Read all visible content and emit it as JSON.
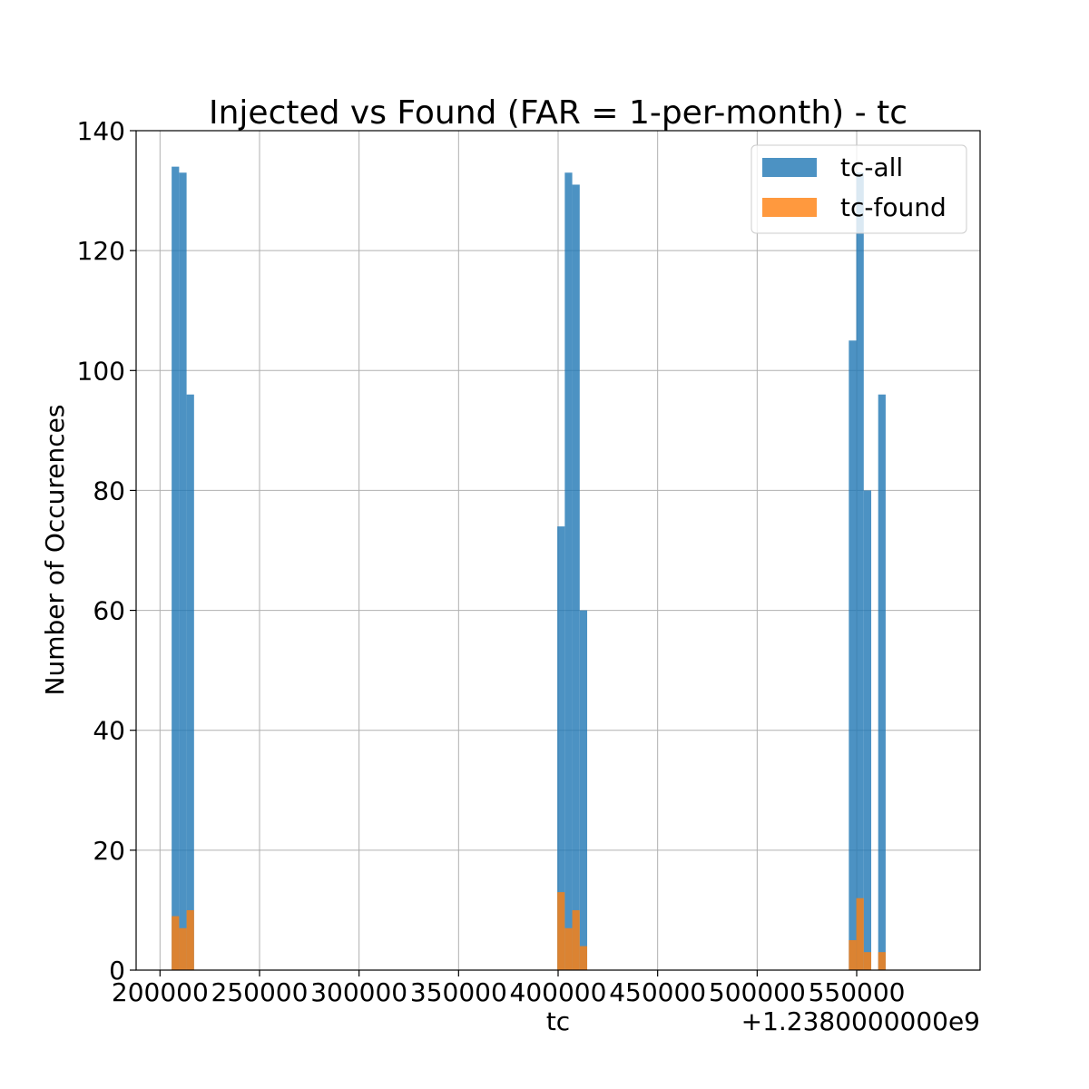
{
  "chart_data": {
    "type": "bar",
    "title": "Injected vs Found (FAR = 1-per-month) - tc",
    "xlabel": "tc",
    "ylabel": "Number of Occurences",
    "x_offset_label": "+1.2380000000e9",
    "xlim": [
      188000,
      612000
    ],
    "ylim": [
      0,
      140
    ],
    "xticks": [
      200000,
      250000,
      300000,
      350000,
      400000,
      450000,
      500000,
      550000
    ],
    "xtick_labels": [
      "200000",
      "250000",
      "300000",
      "350000",
      "400000",
      "450000",
      "500000",
      "550000"
    ],
    "yticks": [
      0,
      20,
      40,
      60,
      80,
      100,
      120,
      140
    ],
    "ytick_labels": [
      "0",
      "20",
      "40",
      "60",
      "80",
      "100",
      "120",
      "140"
    ],
    "grid": true,
    "legend_position": "upper right",
    "series": [
      {
        "name": "tc-all",
        "color": "#1f77b4",
        "bins": [
          {
            "x0": 205850,
            "x1": 209600,
            "value": 134
          },
          {
            "x0": 209600,
            "x1": 213350,
            "value": 133
          },
          {
            "x0": 213350,
            "x1": 217100,
            "value": 96
          },
          {
            "x0": 399600,
            "x1": 403350,
            "value": 74
          },
          {
            "x0": 403350,
            "x1": 407100,
            "value": 133
          },
          {
            "x0": 407100,
            "x1": 410850,
            "value": 131
          },
          {
            "x0": 410850,
            "x1": 414600,
            "value": 60
          },
          {
            "x0": 546050,
            "x1": 549800,
            "value": 105
          },
          {
            "x0": 549800,
            "x1": 553550,
            "value": 133
          },
          {
            "x0": 553550,
            "x1": 557300,
            "value": 80
          },
          {
            "x0": 560800,
            "x1": 564550,
            "value": 96
          }
        ]
      },
      {
        "name": "tc-found",
        "color": "#ff7f0e",
        "bins": [
          {
            "x0": 205850,
            "x1": 209600,
            "value": 9
          },
          {
            "x0": 209600,
            "x1": 213350,
            "value": 7
          },
          {
            "x0": 213350,
            "x1": 217100,
            "value": 10
          },
          {
            "x0": 399600,
            "x1": 403350,
            "value": 13
          },
          {
            "x0": 403350,
            "x1": 407100,
            "value": 7
          },
          {
            "x0": 407100,
            "x1": 410850,
            "value": 10
          },
          {
            "x0": 410850,
            "x1": 414600,
            "value": 4
          },
          {
            "x0": 546050,
            "x1": 549800,
            "value": 5
          },
          {
            "x0": 549800,
            "x1": 553550,
            "value": 12
          },
          {
            "x0": 553550,
            "x1": 557300,
            "value": 3
          },
          {
            "x0": 560800,
            "x1": 564550,
            "value": 3
          }
        ]
      }
    ]
  }
}
